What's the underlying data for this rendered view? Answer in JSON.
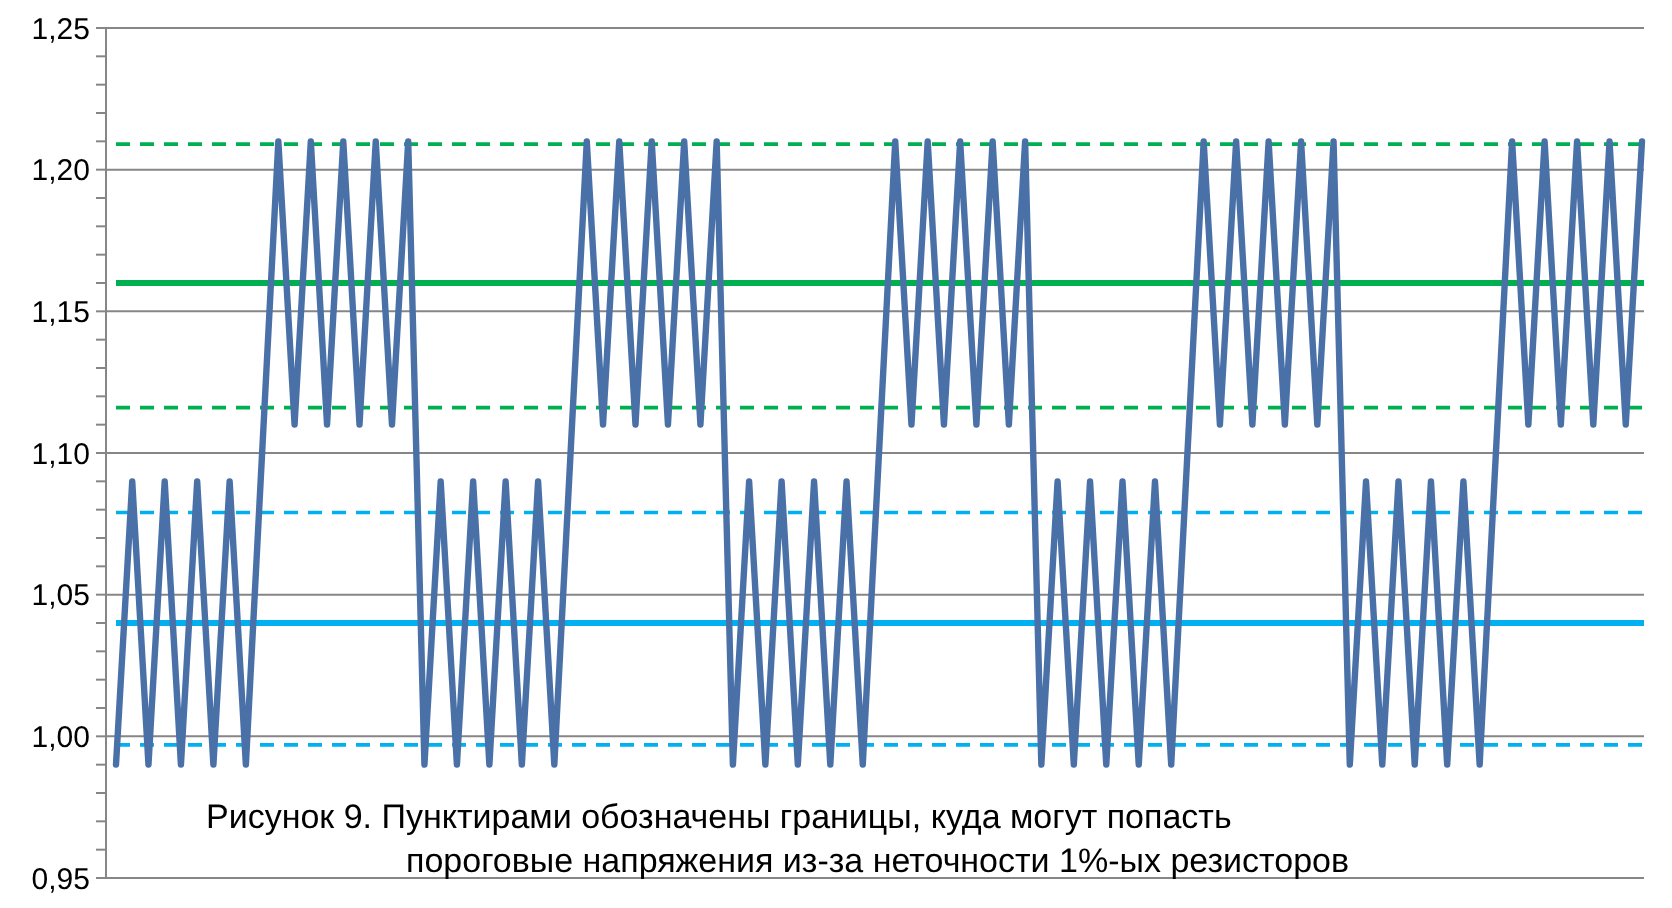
{
  "chart_data": {
    "type": "line",
    "categories": [
      null,
      null,
      null,
      null,
      null,
      null,
      null,
      null,
      null,
      null,
      null,
      null,
      null,
      null,
      null,
      null,
      null,
      null,
      null,
      null,
      null,
      null,
      null,
      null,
      null,
      null,
      null,
      null,
      null,
      null,
      null,
      null,
      null,
      null,
      null,
      null,
      null,
      null,
      null,
      null,
      null,
      null,
      null,
      null,
      null,
      null,
      null,
      null,
      null,
      null,
      null,
      null,
      null,
      null,
      null,
      null,
      null,
      null,
      null,
      null,
      null,
      null,
      null,
      null,
      null,
      null,
      null,
      null,
      null,
      null,
      null,
      null,
      null,
      null,
      null,
      null,
      null,
      null,
      null,
      null,
      null,
      null,
      null,
      null,
      null,
      null,
      null,
      null,
      null,
      null,
      null,
      null,
      null,
      null,
      null
    ],
    "series": [
      {
        "color": "#4a70a8",
        "values": [
          0.99,
          1.09,
          0.99,
          1.09,
          0.99,
          1.09,
          0.99,
          1.09,
          0.99,
          1.1,
          1.21,
          1.11,
          1.21,
          1.11,
          1.21,
          1.11,
          1.21,
          1.11,
          1.21,
          0.99,
          1.09,
          0.99,
          1.09,
          0.99,
          1.09,
          0.99,
          1.09,
          0.99,
          1.1,
          1.21,
          1.11,
          1.21,
          1.11,
          1.21,
          1.11,
          1.21,
          1.11,
          1.21,
          0.99,
          1.09,
          0.99,
          1.09,
          0.99,
          1.09,
          0.99,
          1.09,
          0.99,
          1.1,
          1.21,
          1.11,
          1.21,
          1.11,
          1.21,
          1.11,
          1.21,
          1.11,
          1.21,
          0.99,
          1.09,
          0.99,
          1.09,
          0.99,
          1.09,
          0.99,
          1.09,
          0.99,
          1.1,
          1.21,
          1.11,
          1.21,
          1.11,
          1.21,
          1.11,
          1.21,
          1.11,
          1.21,
          0.99,
          1.09,
          0.99,
          1.09,
          0.99,
          1.09,
          0.99,
          1.09,
          0.99,
          1.1,
          1.21,
          1.11,
          1.21,
          1.11,
          1.21,
          1.11,
          1.21,
          1.11,
          1.21
        ]
      }
    ],
    "ylim": [
      0.95,
      1.25
    ],
    "yticks": [
      {
        "value": 0.95,
        "label": "0,95"
      },
      {
        "value": 0.96,
        "label": null
      },
      {
        "value": 0.97,
        "label": null
      },
      {
        "value": 0.98,
        "label": null
      },
      {
        "value": 0.99,
        "label": null
      },
      {
        "value": 1.0,
        "label": "1,00"
      },
      {
        "value": 1.01,
        "label": null
      },
      {
        "value": 1.02,
        "label": null
      },
      {
        "value": 1.03,
        "label": null
      },
      {
        "value": 1.04,
        "label": null
      },
      {
        "value": 1.05,
        "label": "1,05"
      },
      {
        "value": 1.06,
        "label": null
      },
      {
        "value": 1.07,
        "label": null
      },
      {
        "value": 1.08,
        "label": null
      },
      {
        "value": 1.09,
        "label": null
      },
      {
        "value": 1.1,
        "label": "1,10"
      },
      {
        "value": 1.11,
        "label": null
      },
      {
        "value": 1.12,
        "label": null
      },
      {
        "value": 1.13,
        "label": null
      },
      {
        "value": 1.14,
        "label": null
      },
      {
        "value": 1.15,
        "label": "1,15"
      },
      {
        "value": 1.16,
        "label": null
      },
      {
        "value": 1.17,
        "label": null
      },
      {
        "value": 1.18,
        "label": null
      },
      {
        "value": 1.19,
        "label": null
      },
      {
        "value": 1.2,
        "label": "1,20"
      },
      {
        "value": 1.21,
        "label": null
      },
      {
        "value": 1.22,
        "label": null
      },
      {
        "value": 1.23,
        "label": null
      },
      {
        "value": 1.24,
        "label": null
      },
      {
        "value": 1.25,
        "label": "1,25"
      }
    ],
    "grid": "y",
    "line_style": "solid",
    "ref_lines": [
      {
        "axis": "y",
        "value": 1.209,
        "color": "#00b050",
        "line_style": "dashed"
      },
      {
        "axis": "y",
        "value": 1.16,
        "color": "#00b050",
        "line_style": "solid"
      },
      {
        "axis": "y",
        "value": 1.116,
        "color": "#00b050",
        "line_style": "dashed"
      },
      {
        "axis": "y",
        "value": 1.079,
        "color": "#00b0f0",
        "line_style": "dashed"
      },
      {
        "axis": "y",
        "value": 1.04,
        "color": "#00b0f0",
        "line_style": "solid"
      },
      {
        "axis": "y",
        "value": 0.997,
        "color": "#00b0f0",
        "line_style": "dashed"
      }
    ],
    "annotations": [
      "Рисунок 9. Пунктирами обозначены границы, куда могут попасть\nпороговые напряжения из-за неточности 1%-ых резисторов"
    ]
  }
}
